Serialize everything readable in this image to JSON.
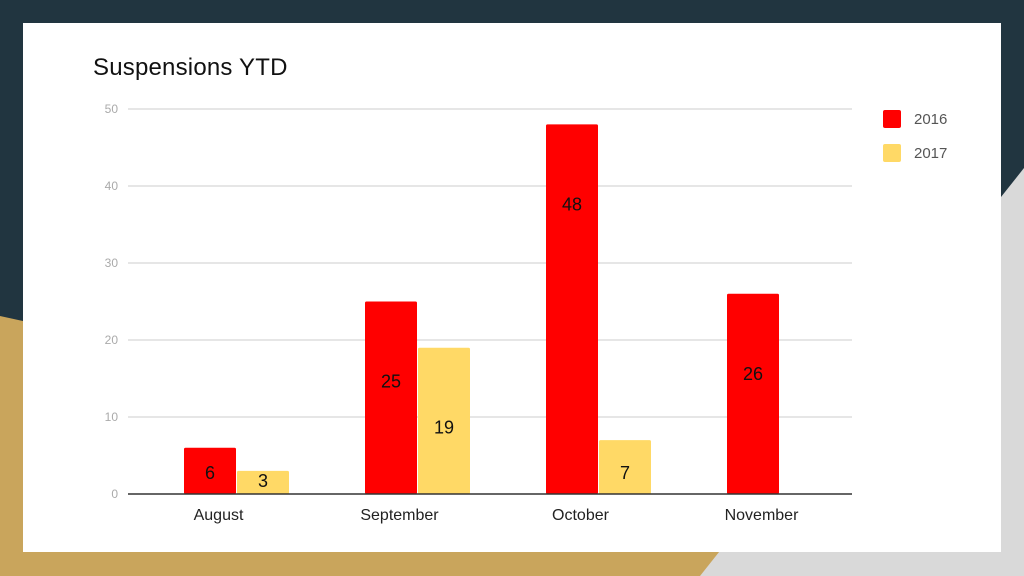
{
  "slide": {
    "background_dark": "#213540",
    "background_gold": "#c9a55c",
    "background_gray": "#d9d9d9"
  },
  "chart_data": {
    "type": "bar",
    "title": "Suspensions YTD",
    "xlabel": "",
    "ylabel": "",
    "categories": [
      "August",
      "September",
      "October",
      "November"
    ],
    "series": [
      {
        "name": "2016",
        "color": "#ff0000",
        "values": [
          6,
          25,
          48,
          26
        ]
      },
      {
        "name": "2017",
        "color": "#ffd966",
        "values": [
          3,
          19,
          7,
          null
        ]
      }
    ],
    "ylim": [
      0,
      50
    ],
    "yticks": [
      0,
      10,
      20,
      30,
      40,
      50
    ],
    "grid": true,
    "legend_position": "right",
    "data_labels": true
  }
}
